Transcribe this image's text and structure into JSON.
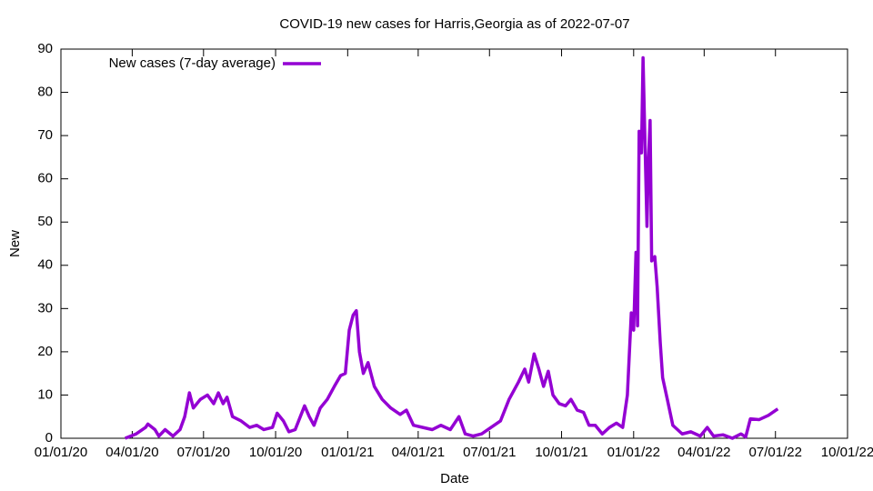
{
  "chart_data": {
    "type": "line",
    "title": "COVID-19 new cases for Harris,Georgia as of 2022-07-07",
    "x_label": "Date",
    "y_label": "New",
    "legend": "top-left",
    "grid": false,
    "xlim": [
      "2020-01-01",
      "2022-10-01"
    ],
    "xticks": [
      {
        "value": "2020-01-01",
        "label": "01/01/20"
      },
      {
        "value": "2020-04-01",
        "label": "04/01/20"
      },
      {
        "value": "2020-07-01",
        "label": "07/01/20"
      },
      {
        "value": "2020-10-01",
        "label": "10/01/20"
      },
      {
        "value": "2021-01-01",
        "label": "01/01/21"
      },
      {
        "value": "2021-04-01",
        "label": "04/01/21"
      },
      {
        "value": "2021-07-01",
        "label": "07/01/21"
      },
      {
        "value": "2021-10-01",
        "label": "10/01/21"
      },
      {
        "value": "2022-01-01",
        "label": "01/01/22"
      },
      {
        "value": "2022-04-01",
        "label": "04/01/22"
      },
      {
        "value": "2022-07-01",
        "label": "07/01/22"
      },
      {
        "value": "2022-10-01",
        "label": "10/01/22"
      }
    ],
    "ylim": [
      0,
      90
    ],
    "yticks": [
      0,
      10,
      20,
      30,
      40,
      50,
      60,
      70,
      80,
      90
    ],
    "x": [
      "2020-03-23",
      "2020-04-06",
      "2020-04-18",
      "2020-04-21",
      "2020-04-30",
      "2020-05-05",
      "2020-05-13",
      "2020-05-23",
      "2020-06-01",
      "2020-06-07",
      "2020-06-13",
      "2020-06-18",
      "2020-06-27",
      "2020-07-06",
      "2020-07-14",
      "2020-07-20",
      "2020-07-26",
      "2020-07-31",
      "2020-08-07",
      "2020-08-18",
      "2020-08-29",
      "2020-09-07",
      "2020-09-16",
      "2020-09-27",
      "2020-10-03",
      "2020-10-11",
      "2020-10-18",
      "2020-10-26",
      "2020-11-07",
      "2020-11-13",
      "2020-11-19",
      "2020-11-27",
      "2020-12-06",
      "2020-12-15",
      "2020-12-23",
      "2020-12-29",
      "2021-01-03",
      "2021-01-08",
      "2021-01-12",
      "2021-01-16",
      "2021-01-21",
      "2021-01-27",
      "2021-02-04",
      "2021-02-14",
      "2021-02-25",
      "2021-03-09",
      "2021-03-17",
      "2021-03-26",
      "2021-04-07",
      "2021-04-19",
      "2021-04-30",
      "2021-05-12",
      "2021-05-23",
      "2021-05-31",
      "2021-06-10",
      "2021-06-21",
      "2021-07-03",
      "2021-07-15",
      "2021-07-26",
      "2021-08-07",
      "2021-08-15",
      "2021-08-20",
      "2021-08-27",
      "2021-09-02",
      "2021-09-08",
      "2021-09-14",
      "2021-09-20",
      "2021-09-28",
      "2021-10-06",
      "2021-10-13",
      "2021-10-21",
      "2021-10-29",
      "2021-11-05",
      "2021-11-13",
      "2021-11-22",
      "2021-12-01",
      "2021-12-10",
      "2021-12-18",
      "2021-12-24",
      "2021-12-29",
      "2022-01-01",
      "2022-01-04",
      "2022-01-06",
      "2022-01-08",
      "2022-01-11",
      "2022-01-13",
      "2022-01-15",
      "2022-01-18",
      "2022-01-20",
      "2022-01-22",
      "2022-01-24",
      "2022-01-28",
      "2022-01-31",
      "2022-02-04",
      "2022-02-07",
      "2022-02-13",
      "2022-02-20",
      "2022-03-04",
      "2022-03-15",
      "2022-03-27",
      "2022-04-05",
      "2022-04-13",
      "2022-04-25",
      "2022-05-07",
      "2022-05-18",
      "2022-05-24",
      "2022-05-30",
      "2022-06-10",
      "2022-06-22",
      "2022-07-04"
    ],
    "series": [
      {
        "name": "New cases (7-day average)",
        "color": "#9400d3",
        "values": [
          0,
          1,
          2.5,
          3.3,
          2,
          0.5,
          2,
          0.5,
          2,
          5,
          10.5,
          7,
          9,
          10,
          8,
          10.5,
          8,
          9.5,
          5,
          4,
          2.5,
          3,
          2,
          2.5,
          5.8,
          4,
          1.5,
          2,
          7.5,
          5,
          3,
          7,
          9,
          12,
          14.5,
          15,
          25,
          28.5,
          29.5,
          20,
          15,
          17.5,
          12,
          9,
          7,
          5.5,
          6.5,
          3,
          2.5,
          2,
          3,
          2,
          5,
          1,
          0.5,
          1,
          2.5,
          4,
          9,
          13,
          16,
          13,
          19.5,
          16,
          12,
          15.5,
          10,
          8,
          7.5,
          9,
          6.5,
          6,
          3,
          3,
          1,
          2.5,
          3.5,
          2.5,
          10,
          29,
          25,
          43,
          26,
          71,
          66,
          88,
          72,
          49,
          65,
          73.5,
          41,
          42,
          35,
          22,
          14,
          9,
          3,
          1,
          1.5,
          0.5,
          2.5,
          0.5,
          0.8,
          0,
          1,
          0.3,
          4.5,
          4.3,
          5.3,
          6.8
        ]
      }
    ]
  }
}
